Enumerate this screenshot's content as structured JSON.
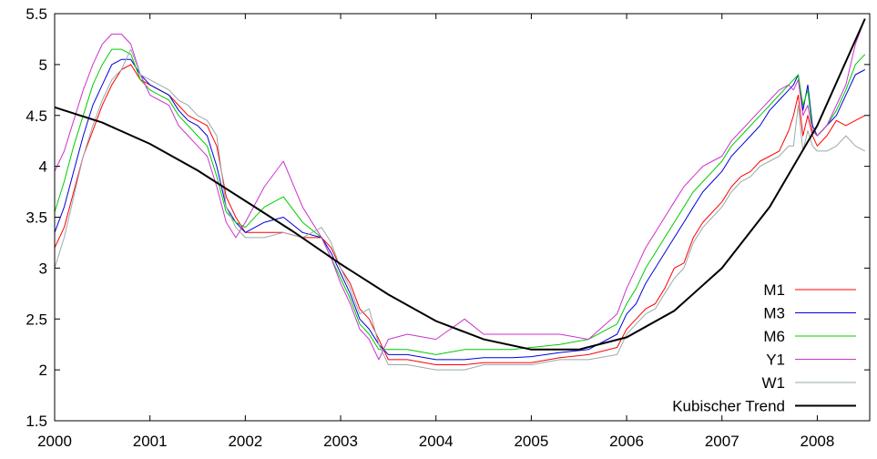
{
  "chart_data": {
    "type": "line",
    "title": "",
    "xlabel": "",
    "ylabel": "",
    "xlim": [
      2000,
      2008.55
    ],
    "ylim": [
      1.5,
      5.5
    ],
    "x_ticks": [
      "2000",
      "2001",
      "2002",
      "2003",
      "2004",
      "2005",
      "2006",
      "2007",
      "2008"
    ],
    "y_ticks": [
      "1.5",
      "2",
      "2.5",
      "3",
      "3.5",
      "4",
      "4.5",
      "5",
      "5.5"
    ],
    "grid": false,
    "legend_position": "bottom-right",
    "series": [
      {
        "name": "M1",
        "color": "#ff0000",
        "x": [
          2000.0,
          2000.1,
          2000.2,
          2000.3,
          2000.4,
          2000.5,
          2000.6,
          2000.7,
          2000.8,
          2000.9,
          2001.0,
          2001.1,
          2001.2,
          2001.3,
          2001.4,
          2001.5,
          2001.6,
          2001.7,
          2001.8,
          2001.9,
          2002.0,
          2002.2,
          2002.4,
          2002.6,
          2002.8,
          2002.9,
          2003.0,
          2003.1,
          2003.2,
          2003.3,
          2003.4,
          2003.5,
          2003.7,
          2004.0,
          2004.3,
          2004.5,
          2004.8,
          2005.0,
          2005.3,
          2005.6,
          2005.9,
          2006.0,
          2006.1,
          2006.2,
          2006.3,
          2006.4,
          2006.5,
          2006.6,
          2006.7,
          2006.8,
          2006.9,
          2007.0,
          2007.1,
          2007.2,
          2007.3,
          2007.4,
          2007.5,
          2007.6,
          2007.7,
          2007.75,
          2007.8,
          2007.85,
          2007.9,
          2007.95,
          2008.0,
          2008.1,
          2008.2,
          2008.3,
          2008.4,
          2008.5
        ],
        "values": [
          3.2,
          3.4,
          3.75,
          4.1,
          4.35,
          4.6,
          4.8,
          4.95,
          5.0,
          4.85,
          4.8,
          4.75,
          4.7,
          4.6,
          4.5,
          4.45,
          4.4,
          4.2,
          3.7,
          3.5,
          3.35,
          3.35,
          3.35,
          3.3,
          3.3,
          3.2,
          3.0,
          2.85,
          2.6,
          2.5,
          2.3,
          2.1,
          2.1,
          2.05,
          2.05,
          2.07,
          2.07,
          2.07,
          2.12,
          2.15,
          2.22,
          2.4,
          2.5,
          2.6,
          2.65,
          2.8,
          3.0,
          3.05,
          3.3,
          3.45,
          3.55,
          3.65,
          3.8,
          3.9,
          3.95,
          4.05,
          4.1,
          4.15,
          4.35,
          4.5,
          4.7,
          4.3,
          4.5,
          4.3,
          4.2,
          4.3,
          4.45,
          4.4,
          4.45,
          4.5
        ]
      },
      {
        "name": "M3",
        "color": "#0000dd",
        "x": [
          2000.0,
          2000.1,
          2000.2,
          2000.3,
          2000.4,
          2000.5,
          2000.6,
          2000.7,
          2000.8,
          2000.9,
          2001.0,
          2001.1,
          2001.2,
          2001.3,
          2001.4,
          2001.5,
          2001.6,
          2001.7,
          2001.8,
          2001.9,
          2002.0,
          2002.2,
          2002.4,
          2002.6,
          2002.8,
          2002.9,
          2003.0,
          2003.1,
          2003.2,
          2003.3,
          2003.4,
          2003.5,
          2003.7,
          2004.0,
          2004.3,
          2004.5,
          2004.8,
          2005.0,
          2005.3,
          2005.6,
          2005.9,
          2006.0,
          2006.1,
          2006.2,
          2006.3,
          2006.4,
          2006.5,
          2006.6,
          2006.7,
          2006.8,
          2006.9,
          2007.0,
          2007.1,
          2007.2,
          2007.3,
          2007.4,
          2007.5,
          2007.6,
          2007.7,
          2007.75,
          2007.8,
          2007.85,
          2007.9,
          2007.95,
          2008.0,
          2008.1,
          2008.2,
          2008.3,
          2008.4,
          2008.5
        ],
        "values": [
          3.35,
          3.6,
          3.95,
          4.3,
          4.6,
          4.8,
          5.0,
          5.05,
          5.05,
          4.9,
          4.8,
          4.75,
          4.7,
          4.55,
          4.45,
          4.4,
          4.3,
          4.0,
          3.6,
          3.45,
          3.35,
          3.45,
          3.5,
          3.35,
          3.3,
          3.15,
          2.95,
          2.75,
          2.5,
          2.4,
          2.25,
          2.15,
          2.15,
          2.1,
          2.1,
          2.12,
          2.12,
          2.13,
          2.17,
          2.2,
          2.35,
          2.55,
          2.65,
          2.85,
          3.0,
          3.15,
          3.3,
          3.45,
          3.6,
          3.75,
          3.85,
          3.95,
          4.1,
          4.2,
          4.3,
          4.4,
          4.55,
          4.65,
          4.75,
          4.8,
          4.9,
          4.55,
          4.8,
          4.4,
          4.3,
          4.4,
          4.5,
          4.7,
          4.9,
          4.95
        ]
      },
      {
        "name": "M6",
        "color": "#00cc00",
        "x": [
          2000.0,
          2000.1,
          2000.2,
          2000.3,
          2000.4,
          2000.5,
          2000.6,
          2000.7,
          2000.8,
          2000.9,
          2001.0,
          2001.1,
          2001.2,
          2001.3,
          2001.4,
          2001.5,
          2001.6,
          2001.7,
          2001.8,
          2001.9,
          2002.0,
          2002.2,
          2002.4,
          2002.6,
          2002.8,
          2002.9,
          2003.0,
          2003.1,
          2003.2,
          2003.3,
          2003.4,
          2003.5,
          2003.7,
          2004.0,
          2004.3,
          2004.5,
          2004.8,
          2005.0,
          2005.3,
          2005.6,
          2005.9,
          2006.0,
          2006.1,
          2006.2,
          2006.3,
          2006.4,
          2006.5,
          2006.6,
          2006.7,
          2006.8,
          2006.9,
          2007.0,
          2007.1,
          2007.2,
          2007.3,
          2007.4,
          2007.5,
          2007.6,
          2007.7,
          2007.75,
          2007.8,
          2007.85,
          2007.9,
          2007.95,
          2008.0,
          2008.1,
          2008.2,
          2008.3,
          2008.4,
          2008.5
        ],
        "values": [
          3.55,
          3.85,
          4.2,
          4.5,
          4.8,
          5.0,
          5.15,
          5.15,
          5.1,
          4.85,
          4.75,
          4.7,
          4.65,
          4.5,
          4.4,
          4.3,
          4.2,
          3.9,
          3.55,
          3.45,
          3.4,
          3.6,
          3.7,
          3.45,
          3.3,
          3.1,
          2.9,
          2.7,
          2.45,
          2.35,
          2.2,
          2.2,
          2.2,
          2.15,
          2.2,
          2.2,
          2.2,
          2.22,
          2.25,
          2.3,
          2.45,
          2.65,
          2.8,
          3.0,
          3.15,
          3.3,
          3.45,
          3.6,
          3.75,
          3.85,
          3.95,
          4.05,
          4.2,
          4.3,
          4.4,
          4.5,
          4.6,
          4.7,
          4.8,
          4.85,
          4.9,
          4.6,
          4.75,
          4.35,
          4.3,
          4.4,
          4.55,
          4.75,
          5.0,
          5.1
        ]
      },
      {
        "name": "Y1",
        "color": "#cc33cc",
        "x": [
          2000.0,
          2000.1,
          2000.2,
          2000.3,
          2000.4,
          2000.5,
          2000.6,
          2000.7,
          2000.8,
          2000.9,
          2001.0,
          2001.1,
          2001.2,
          2001.3,
          2001.4,
          2001.5,
          2001.6,
          2001.7,
          2001.8,
          2001.9,
          2002.0,
          2002.2,
          2002.4,
          2002.6,
          2002.8,
          2002.9,
          2003.0,
          2003.1,
          2003.2,
          2003.3,
          2003.4,
          2003.5,
          2003.7,
          2004.0,
          2004.3,
          2004.5,
          2004.8,
          2005.0,
          2005.3,
          2005.6,
          2005.9,
          2006.0,
          2006.1,
          2006.2,
          2006.3,
          2006.4,
          2006.5,
          2006.6,
          2006.7,
          2006.8,
          2006.9,
          2007.0,
          2007.1,
          2007.2,
          2007.3,
          2007.4,
          2007.5,
          2007.6,
          2007.7,
          2007.75,
          2007.8,
          2007.85,
          2007.9,
          2007.95,
          2008.0,
          2008.1,
          2008.2,
          2008.3,
          2008.4,
          2008.5
        ],
        "values": [
          3.95,
          4.15,
          4.45,
          4.75,
          5.0,
          5.2,
          5.3,
          5.3,
          5.2,
          4.9,
          4.7,
          4.65,
          4.6,
          4.4,
          4.3,
          4.2,
          4.1,
          3.8,
          3.45,
          3.3,
          3.45,
          3.8,
          4.05,
          3.6,
          3.3,
          3.1,
          2.85,
          2.65,
          2.4,
          2.3,
          2.1,
          2.3,
          2.35,
          2.3,
          2.5,
          2.35,
          2.35,
          2.35,
          2.35,
          2.3,
          2.55,
          2.8,
          3.0,
          3.2,
          3.35,
          3.5,
          3.65,
          3.8,
          3.9,
          4.0,
          4.05,
          4.1,
          4.25,
          4.35,
          4.45,
          4.55,
          4.65,
          4.75,
          4.8,
          4.75,
          4.85,
          4.5,
          4.6,
          4.35,
          4.3,
          4.4,
          4.6,
          4.8,
          5.2,
          5.45
        ]
      },
      {
        "name": "W1",
        "color": "#99aaaa",
        "x": [
          2000.0,
          2000.1,
          2000.2,
          2000.3,
          2000.4,
          2000.5,
          2000.6,
          2000.7,
          2000.8,
          2000.9,
          2001.0,
          2001.1,
          2001.2,
          2001.3,
          2001.4,
          2001.5,
          2001.6,
          2001.7,
          2001.8,
          2001.9,
          2002.0,
          2002.2,
          2002.4,
          2002.6,
          2002.8,
          2002.9,
          2003.0,
          2003.1,
          2003.2,
          2003.3,
          2003.4,
          2003.5,
          2003.7,
          2004.0,
          2004.3,
          2004.5,
          2004.8,
          2005.0,
          2005.3,
          2005.6,
          2005.9,
          2006.0,
          2006.1,
          2006.2,
          2006.3,
          2006.4,
          2006.5,
          2006.6,
          2006.7,
          2006.8,
          2006.9,
          2007.0,
          2007.1,
          2007.2,
          2007.3,
          2007.4,
          2007.5,
          2007.6,
          2007.7,
          2007.75,
          2007.8,
          2007.85,
          2007.9,
          2007.95,
          2008.0,
          2008.1,
          2008.2,
          2008.3,
          2008.4,
          2008.5
        ],
        "values": [
          3.0,
          3.3,
          3.7,
          4.1,
          4.4,
          4.65,
          4.85,
          4.95,
          5.15,
          4.9,
          4.85,
          4.8,
          4.75,
          4.65,
          4.6,
          4.5,
          4.45,
          4.3,
          3.6,
          3.4,
          3.3,
          3.3,
          3.35,
          3.3,
          3.4,
          3.25,
          3.0,
          2.8,
          2.55,
          2.6,
          2.25,
          2.05,
          2.05,
          2.0,
          2.0,
          2.05,
          2.05,
          2.05,
          2.1,
          2.1,
          2.15,
          2.35,
          2.45,
          2.55,
          2.6,
          2.75,
          2.9,
          3.0,
          3.25,
          3.4,
          3.5,
          3.6,
          3.75,
          3.85,
          3.9,
          4.0,
          4.05,
          4.1,
          4.2,
          4.2,
          4.6,
          4.15,
          4.35,
          4.2,
          4.15,
          4.15,
          4.2,
          4.3,
          4.2,
          4.15
        ]
      },
      {
        "name": "Kubischer Trend",
        "color": "#000000",
        "x": [
          2000.0,
          2000.5,
          2001.0,
          2001.5,
          2002.0,
          2002.5,
          2003.0,
          2003.5,
          2004.0,
          2004.5,
          2005.0,
          2005.5,
          2006.0,
          2006.5,
          2007.0,
          2007.5,
          2008.0,
          2008.5
        ],
        "values": [
          4.58,
          4.43,
          4.22,
          3.96,
          3.66,
          3.36,
          3.04,
          2.74,
          2.48,
          2.3,
          2.2,
          2.2,
          2.32,
          2.58,
          3.0,
          3.6,
          4.4,
          5.45
        ]
      }
    ]
  }
}
